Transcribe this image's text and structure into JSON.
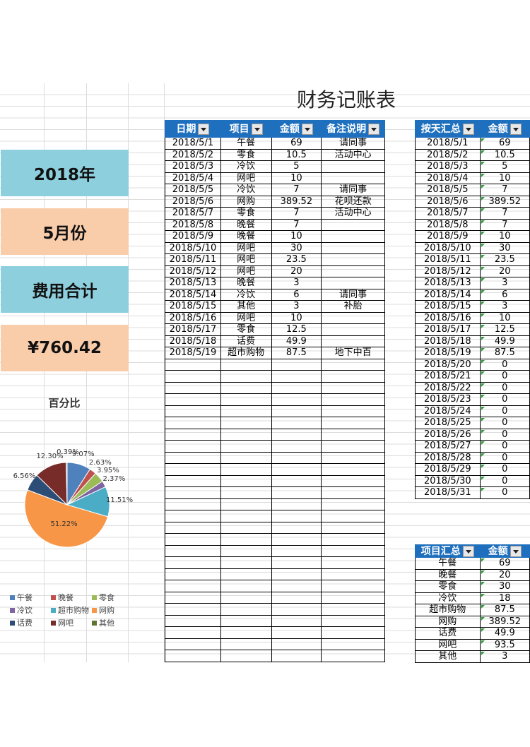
{
  "title": "财务记账表",
  "cards": {
    "year": "2018年",
    "month": "5月份",
    "total_label": "费用合计",
    "total_value": "¥760.42"
  },
  "main_table": {
    "headers": [
      "日期",
      "项目",
      "金额",
      "备注说明"
    ],
    "rows": [
      [
        "2018/5/1",
        "午餐",
        "69",
        "请同事"
      ],
      [
        "2018/5/2",
        "零食",
        "10.5",
        "活动中心"
      ],
      [
        "2018/5/3",
        "冷饮",
        "5",
        ""
      ],
      [
        "2018/5/4",
        "网吧",
        "10",
        ""
      ],
      [
        "2018/5/5",
        "冷饮",
        "7",
        "请同事"
      ],
      [
        "2018/5/6",
        "网购",
        "389.52",
        "花呗还款"
      ],
      [
        "2018/5/7",
        "零食",
        "7",
        "活动中心"
      ],
      [
        "2018/5/8",
        "晚餐",
        "7",
        ""
      ],
      [
        "2018/5/9",
        "晚餐",
        "10",
        ""
      ],
      [
        "2018/5/10",
        "网吧",
        "30",
        ""
      ],
      [
        "2018/5/11",
        "网吧",
        "23.5",
        ""
      ],
      [
        "2018/5/12",
        "网吧",
        "20",
        ""
      ],
      [
        "2018/5/13",
        "晚餐",
        "3",
        ""
      ],
      [
        "2018/5/14",
        "冷饮",
        "6",
        "请同事"
      ],
      [
        "2018/5/15",
        "其他",
        "3",
        "补胎"
      ],
      [
        "2018/5/16",
        "网吧",
        "10",
        ""
      ],
      [
        "2018/5/17",
        "零食",
        "12.5",
        ""
      ],
      [
        "2018/5/18",
        "话费",
        "49.9",
        ""
      ],
      [
        "2018/5/19",
        "超市购物",
        "87.5",
        "地下中百"
      ]
    ],
    "empty_rows": 26
  },
  "daily_table": {
    "headers": [
      "按天汇总",
      "金额"
    ],
    "rows": [
      [
        "2018/5/1",
        "69"
      ],
      [
        "2018/5/2",
        "10.5"
      ],
      [
        "2018/5/3",
        "5"
      ],
      [
        "2018/5/4",
        "10"
      ],
      [
        "2018/5/5",
        "7"
      ],
      [
        "2018/5/6",
        "389.52"
      ],
      [
        "2018/5/7",
        "7"
      ],
      [
        "2018/5/8",
        "7"
      ],
      [
        "2018/5/9",
        "10"
      ],
      [
        "2018/5/10",
        "30"
      ],
      [
        "2018/5/11",
        "23.5"
      ],
      [
        "2018/5/12",
        "20"
      ],
      [
        "2018/5/13",
        "3"
      ],
      [
        "2018/5/14",
        "6"
      ],
      [
        "2018/5/15",
        "3"
      ],
      [
        "2018/5/16",
        "10"
      ],
      [
        "2018/5/17",
        "12.5"
      ],
      [
        "2018/5/18",
        "49.9"
      ],
      [
        "2018/5/19",
        "87.5"
      ],
      [
        "2018/5/20",
        "0"
      ],
      [
        "2018/5/21",
        "0"
      ],
      [
        "2018/5/22",
        "0"
      ],
      [
        "2018/5/23",
        "0"
      ],
      [
        "2018/5/24",
        "0"
      ],
      [
        "2018/5/25",
        "0"
      ],
      [
        "2018/5/26",
        "0"
      ],
      [
        "2018/5/27",
        "0"
      ],
      [
        "2018/5/28",
        "0"
      ],
      [
        "2018/5/29",
        "0"
      ],
      [
        "2018/5/30",
        "0"
      ],
      [
        "2018/5/31",
        "0"
      ]
    ]
  },
  "category_table": {
    "headers": [
      "项目汇总",
      "金额"
    ],
    "rows": [
      [
        "午餐",
        "69"
      ],
      [
        "晚餐",
        "20"
      ],
      [
        "零食",
        "30"
      ],
      [
        "冷饮",
        "18"
      ],
      [
        "超市购物",
        "87.5"
      ],
      [
        "网购",
        "389.52"
      ],
      [
        "话费",
        "49.9"
      ],
      [
        "网吧",
        "93.5"
      ],
      [
        "其他",
        "3"
      ]
    ]
  },
  "chart_data": {
    "type": "pie",
    "title": "百分比",
    "labels": [
      "午餐",
      "晚餐",
      "零食",
      "冷饮",
      "超市购物",
      "网购",
      "话费",
      "网吧",
      "其他"
    ],
    "values": [
      9.07,
      2.63,
      3.95,
      2.37,
      11.51,
      51.22,
      6.56,
      12.3,
      0.39
    ],
    "data_labels": [
      "9.07%",
      "2.63%",
      "3.95%",
      "2.37%",
      "11.51%",
      "51.22%",
      "6.56%",
      "12.30%",
      "0.39%"
    ],
    "colors": [
      "#4f81bd",
      "#c0504d",
      "#9bbb59",
      "#8064a2",
      "#4bacc6",
      "#f79646",
      "#2c4d75",
      "#772c2a",
      "#5f7530"
    ],
    "legend_position": "bottom"
  }
}
